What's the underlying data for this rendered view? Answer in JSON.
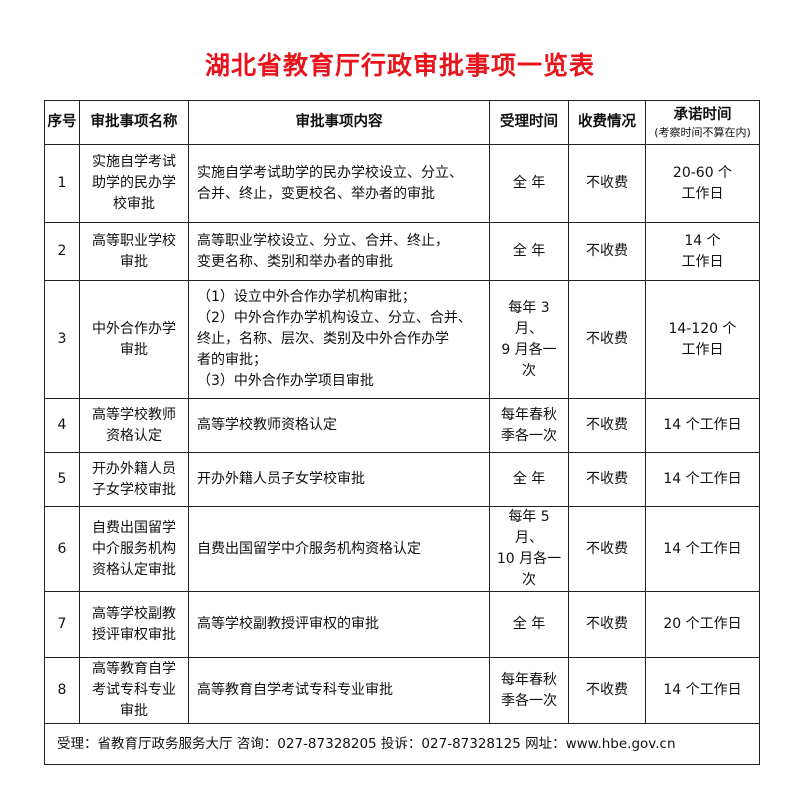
{
  "title": "湖北省教育厅行政审批事项一览表",
  "title_color": "#e8141c",
  "headers": {
    "seq": "序号",
    "name": "审批事项名称",
    "content": "审批事项内容",
    "accept_time": "受理时间",
    "fee": "收费情况",
    "promise": "承诺时间",
    "promise_note": "(考察时间不算在内)"
  },
  "rows": [
    {
      "seq": "1",
      "name": "实施自学考试\n助学的民办学\n校审批",
      "content": "实施自学考试助学的民办学校设立、分立、\n合并、终止，变更校名、举办者的审批",
      "accept_time": "全 年",
      "fee": "不收费",
      "promise": "20-60 个\n工作日"
    },
    {
      "seq": "2",
      "name": "高等职业学校\n审批",
      "content": "高等职业学校设立、分立、合并、终止，\n变更名称、类别和举办者的审批",
      "accept_time": "全 年",
      "fee": "不收费",
      "promise": "14 个\n工作日"
    },
    {
      "seq": "3",
      "name": "中外合作办学\n审批",
      "content": "（1）设立中外合作办学机构审批；\n（2）中外合作办学机构设立、分立、合并、\n终止，名称、层次、类别及中外合作办学\n者的审批；\n（3）中外合作办学项目审批",
      "accept_time": "每年 3 月、\n9 月各一\n次",
      "fee": "不收费",
      "promise": "14-120 个\n工作日"
    },
    {
      "seq": "4",
      "name": "高等学校教师\n资格认定",
      "content": "高等学校教师资格认定",
      "accept_time": "每年春秋\n季各一次",
      "fee": "不收费",
      "promise": "14 个工作日"
    },
    {
      "seq": "5",
      "name": "开办外籍人员\n子女学校审批",
      "content": "开办外籍人员子女学校审批",
      "accept_time": "全 年",
      "fee": "不收费",
      "promise": "14 个工作日"
    },
    {
      "seq": "6",
      "name": "自费出国留学\n中介服务机构\n资格认定审批",
      "content": "自费出国留学中介服务机构资格认定",
      "accept_time": "每年 5 月、\n10 月各一\n次",
      "fee": "不收费",
      "promise": "14 个工作日"
    },
    {
      "seq": "7",
      "name": "高等学校副教\n授评审权审批",
      "content": "高等学校副教授评审权的审批",
      "accept_time": "全 年",
      "fee": "不收费",
      "promise": "20 个工作日"
    },
    {
      "seq": "8",
      "name": "高等教育自学\n考试专科专业\n审批",
      "content": "高等教育自学考试专科专业审批",
      "accept_time": "每年春秋\n季各一次",
      "fee": "不收费",
      "promise": "14 个工作日"
    }
  ],
  "footer": "受理：省教育厅政务服务大厅   咨询：027-87328205   投诉：027-87328125   网址：www.hbe.gov.cn"
}
